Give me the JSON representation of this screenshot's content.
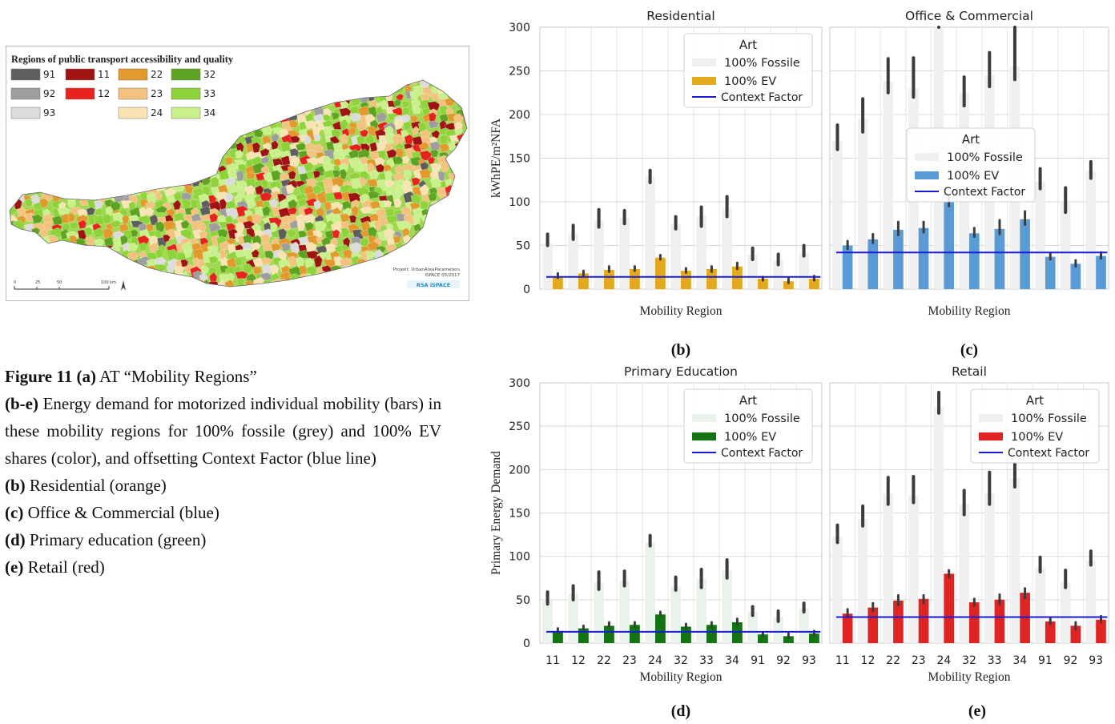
{
  "map": {
    "legend_title": "Regions of public transport accessibility and quality",
    "legend_items": [
      {
        "code": "91",
        "color": "#5e5e5e"
      },
      {
        "code": "11",
        "color": "#a01313"
      },
      {
        "code": "22",
        "color": "#e29a2c"
      },
      {
        "code": "32",
        "color": "#5ea321"
      },
      {
        "code": "92",
        "color": "#9e9e9e"
      },
      {
        "code": "12",
        "color": "#e8231e"
      },
      {
        "code": "23",
        "color": "#f2c27e"
      },
      {
        "code": "33",
        "color": "#8ed33a"
      },
      {
        "code": "93",
        "color": "#dcdcdc"
      },
      {
        "code": "24",
        "color": "#f9e3b4"
      },
      {
        "code": "34",
        "color": "#c9f08a"
      }
    ],
    "scale_labels": [
      "0",
      "25",
      "50",
      "100 km"
    ],
    "credit_line1": "Projekt: UrbanAreaParameters",
    "credit_line2": "iSPACE 05/2017",
    "credit_logo": "RSA iSPACE"
  },
  "caption": {
    "fig_label": "Figure 11 (a)",
    "fig_text": "AT “Mobility Regions”",
    "be_label": "(b-e)",
    "be_text": "Energy demand for motorized individual mobility (bars) in these mobility regions for 100% fossile (grey) and 100% EV shares (color), and offsetting Context Factor (blue line)",
    "items": [
      {
        "label": "(b)",
        "text": "Residential (orange)"
      },
      {
        "label": "(c)",
        "text": "Office & Commercial (blue)"
      },
      {
        "label": "(d)",
        "text": "Primary education (green)"
      },
      {
        "label": "(e)",
        "text": "Retail (red)"
      }
    ]
  },
  "chart_data": [
    {
      "type": "bar",
      "panel": "(b)",
      "title": "Residential",
      "xlabel": "Mobility Region",
      "ylabel": "kWhPE/m²NFA",
      "ylim": [
        0,
        300
      ],
      "yticks": [
        0,
        50,
        100,
        150,
        200,
        250,
        300
      ],
      "categories": [
        "11",
        "12",
        "22",
        "23",
        "24",
        "32",
        "33",
        "34",
        "91",
        "92",
        "93"
      ],
      "show_xticks": false,
      "legend": {
        "title": "Art",
        "placement": "top-right"
      },
      "series": [
        {
          "name": "100% Fossile",
          "color": "#f0f0f0",
          "values": [
            53,
            64,
            79,
            82,
            129,
            74,
            84,
            93,
            39,
            33,
            42
          ],
          "err_low": [
            50,
            57,
            71,
            75,
            122,
            69,
            72,
            83,
            34,
            28,
            38
          ],
          "err_high": [
            63,
            73,
            91,
            90,
            136,
            83,
            94,
            106,
            47,
            40,
            50
          ]
        },
        {
          "name": "100% EV",
          "color": "#e3aa1e",
          "values": [
            15,
            18,
            22,
            23,
            36,
            21,
            23,
            26,
            12,
            9,
            12
          ],
          "err_low": [
            13,
            16,
            20,
            21,
            34,
            19,
            20,
            23,
            10,
            7,
            10
          ],
          "err_high": [
            18,
            21,
            26,
            26,
            39,
            24,
            26,
            30,
            14,
            12,
            15
          ]
        }
      ],
      "context_factor": {
        "name": "Context Factor",
        "color": "#1a1ad6",
        "value": 14
      }
    },
    {
      "type": "bar",
      "panel": "(c)",
      "title": "Office & Commercial",
      "xlabel": "Mobility Region",
      "ylabel": "",
      "ylim": [
        0,
        300
      ],
      "categories": [
        "11",
        "12",
        "22",
        "23",
        "24",
        "32",
        "33",
        "34",
        "91",
        "92",
        "93"
      ],
      "show_xticks": false,
      "legend": {
        "title": "Art",
        "placement": "center"
      },
      "series": [
        {
          "name": "100% Fossile",
          "color": "#f0f0f0",
          "values": [
            170,
            195,
            238,
            230,
            300,
            225,
            245,
            255,
            123,
            100,
            135
          ],
          "err_low": [
            160,
            180,
            225,
            220,
            300,
            210,
            232,
            240,
            115,
            88,
            127
          ],
          "err_high": [
            188,
            218,
            264,
            265,
            300,
            243,
            271,
            300,
            138,
            116,
            146
          ]
        },
        {
          "name": "100% EV",
          "color": "#5b9bd5",
          "values": [
            50,
            57,
            68,
            70,
            100,
            64,
            69,
            80,
            37,
            29,
            38
          ],
          "err_low": [
            46,
            53,
            62,
            65,
            95,
            60,
            63,
            74,
            34,
            26,
            35
          ],
          "err_high": [
            55,
            63,
            77,
            77,
            105,
            70,
            79,
            89,
            41,
            33,
            42
          ]
        }
      ],
      "context_factor": {
        "name": "Context Factor",
        "color": "#1a1ad6",
        "value": 42
      }
    },
    {
      "type": "bar",
      "panel": "(d)",
      "title": "Primary Education",
      "xlabel": "Mobility Region",
      "ylabel": "Primary Energy Demand",
      "ylim": [
        0,
        300
      ],
      "yticks": [
        0,
        50,
        100,
        150,
        200,
        250,
        300
      ],
      "categories": [
        "11",
        "12",
        "22",
        "23",
        "24",
        "32",
        "33",
        "34",
        "91",
        "92",
        "93"
      ],
      "show_xticks": true,
      "legend": {
        "title": "Art",
        "placement": "top-right"
      },
      "series": [
        {
          "name": "100% Fossile",
          "color": "#e9f3e9",
          "values": [
            49,
            57,
            70,
            72,
            116,
            66,
            74,
            84,
            36,
            30,
            40
          ],
          "err_low": [
            45,
            50,
            62,
            66,
            112,
            61,
            64,
            75,
            32,
            25,
            36
          ],
          "err_high": [
            59,
            66,
            82,
            83,
            124,
            76,
            85,
            96,
            42,
            37,
            46
          ]
        },
        {
          "name": "100% EV",
          "color": "#127412",
          "values": [
            14,
            17,
            20,
            21,
            33,
            19,
            21,
            24,
            10,
            8,
            11
          ],
          "err_low": [
            12,
            15,
            18,
            19,
            32,
            17,
            18,
            21,
            8,
            6,
            9
          ],
          "err_high": [
            17,
            20,
            24,
            24,
            36,
            22,
            24,
            28,
            12,
            11,
            14
          ]
        }
      ],
      "context_factor": {
        "name": "Context Factor",
        "color": "#1a1ad6",
        "value": 13
      }
    },
    {
      "type": "bar",
      "panel": "(e)",
      "title": "Retail",
      "xlabel": "Mobility Region",
      "ylabel": "",
      "ylim": [
        0,
        300
      ],
      "categories": [
        "11",
        "12",
        "22",
        "23",
        "24",
        "32",
        "33",
        "34",
        "91",
        "92",
        "93"
      ],
      "show_xticks": true,
      "legend": {
        "title": "Art",
        "placement": "top-right"
      },
      "series": [
        {
          "name": "100% Fossile",
          "color": "#f0f0f0",
          "values": [
            123,
            143,
            172,
            170,
            273,
            160,
            173,
            190,
            87,
            70,
            95
          ],
          "err_low": [
            116,
            135,
            160,
            162,
            265,
            148,
            160,
            180,
            82,
            64,
            90
          ],
          "err_high": [
            136,
            158,
            191,
            192,
            289,
            176,
            197,
            207,
            99,
            84,
            106
          ]
        },
        {
          "name": "100% EV",
          "color": "#e02424",
          "values": [
            34,
            41,
            49,
            51,
            80,
            47,
            50,
            58,
            25,
            20,
            27
          ],
          "err_low": [
            31,
            37,
            44,
            46,
            76,
            43,
            45,
            52,
            22,
            16,
            24
          ],
          "err_high": [
            39,
            46,
            55,
            55,
            84,
            51,
            56,
            63,
            28,
            24,
            31
          ]
        }
      ],
      "context_factor": {
        "name": "Context Factor",
        "color": "#1a1ad6",
        "value": 30
      }
    }
  ]
}
